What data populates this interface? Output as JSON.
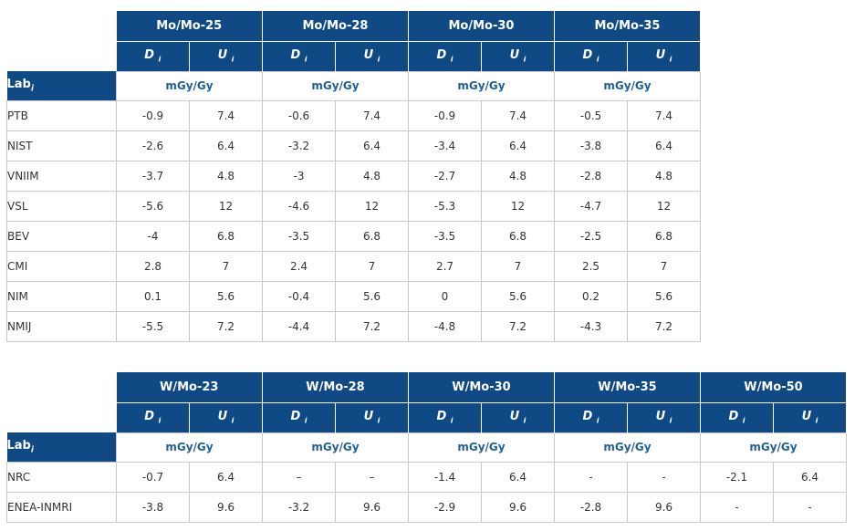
{
  "lab_header": "Lab",
  "lab_header_sub": "i",
  "table1": {
    "groups": [
      "Mo/Mo-25",
      "Mo/Mo-28",
      "Mo/Mo-30",
      "Mo/Mo-35"
    ],
    "d_label": "D",
    "u_label": "U",
    "sub_label": "i",
    "unit": "mGy/Gy",
    "rows": [
      {
        "lab": "PTB",
        "values": [
          "-0.9",
          "7.4",
          "-0.6",
          "7.4",
          "-0.9",
          "7.4",
          "-0.5",
          "7.4"
        ]
      },
      {
        "lab": "NIST",
        "values": [
          "-2.6",
          "6.4",
          "-3.2",
          "6.4",
          "-3.4",
          "6.4",
          "-3.8",
          "6.4"
        ]
      },
      {
        "lab": "VNIIM",
        "values": [
          "-3.7",
          "4.8",
          "-3",
          "4.8",
          "-2.7",
          "4.8",
          "-2.8",
          "4.8"
        ]
      },
      {
        "lab": "VSL",
        "values": [
          "-5.6",
          "12",
          "-4.6",
          "12",
          "-5.3",
          "12",
          "-4.7",
          "12"
        ]
      },
      {
        "lab": "BEV",
        "values": [
          "-4",
          "6.8",
          "-3.5",
          "6.8",
          "-3.5",
          "6.8",
          "-2.5",
          "6.8"
        ]
      },
      {
        "lab": "CMI",
        "values": [
          "2.8",
          "7",
          "2.4",
          "7",
          "2.7",
          "7",
          "2.5",
          "7"
        ]
      },
      {
        "lab": "NIM",
        "values": [
          "0.1",
          "5.6",
          "-0.4",
          "5.6",
          "0",
          "5.6",
          "0.2",
          "5.6"
        ]
      },
      {
        "lab": "NMIJ",
        "values": [
          "-5.5",
          "7.2",
          "-4.4",
          "7.2",
          "-4.8",
          "7.2",
          "-4.3",
          "7.2"
        ]
      }
    ]
  },
  "table2": {
    "groups": [
      "W/Mo-23",
      "W/Mo-28",
      "W/Mo-30",
      "W/Mo-35",
      "W/Mo-50"
    ],
    "d_label": "D",
    "u_label": "U",
    "sub_label": "i",
    "unit": "mGy/Gy",
    "rows": [
      {
        "lab": "NRC",
        "values": [
          "-0.7",
          "6.4",
          "–",
          "–",
          "-1.4",
          "6.4",
          "-",
          "-",
          "-2.1",
          "6.4"
        ]
      },
      {
        "lab": "ENEA-INMRI",
        "values": [
          "-3.8",
          "9.6",
          "-3.2",
          "9.6",
          "-2.9",
          "9.6",
          "-2.8",
          "9.6",
          "-",
          "-"
        ]
      }
    ]
  }
}
